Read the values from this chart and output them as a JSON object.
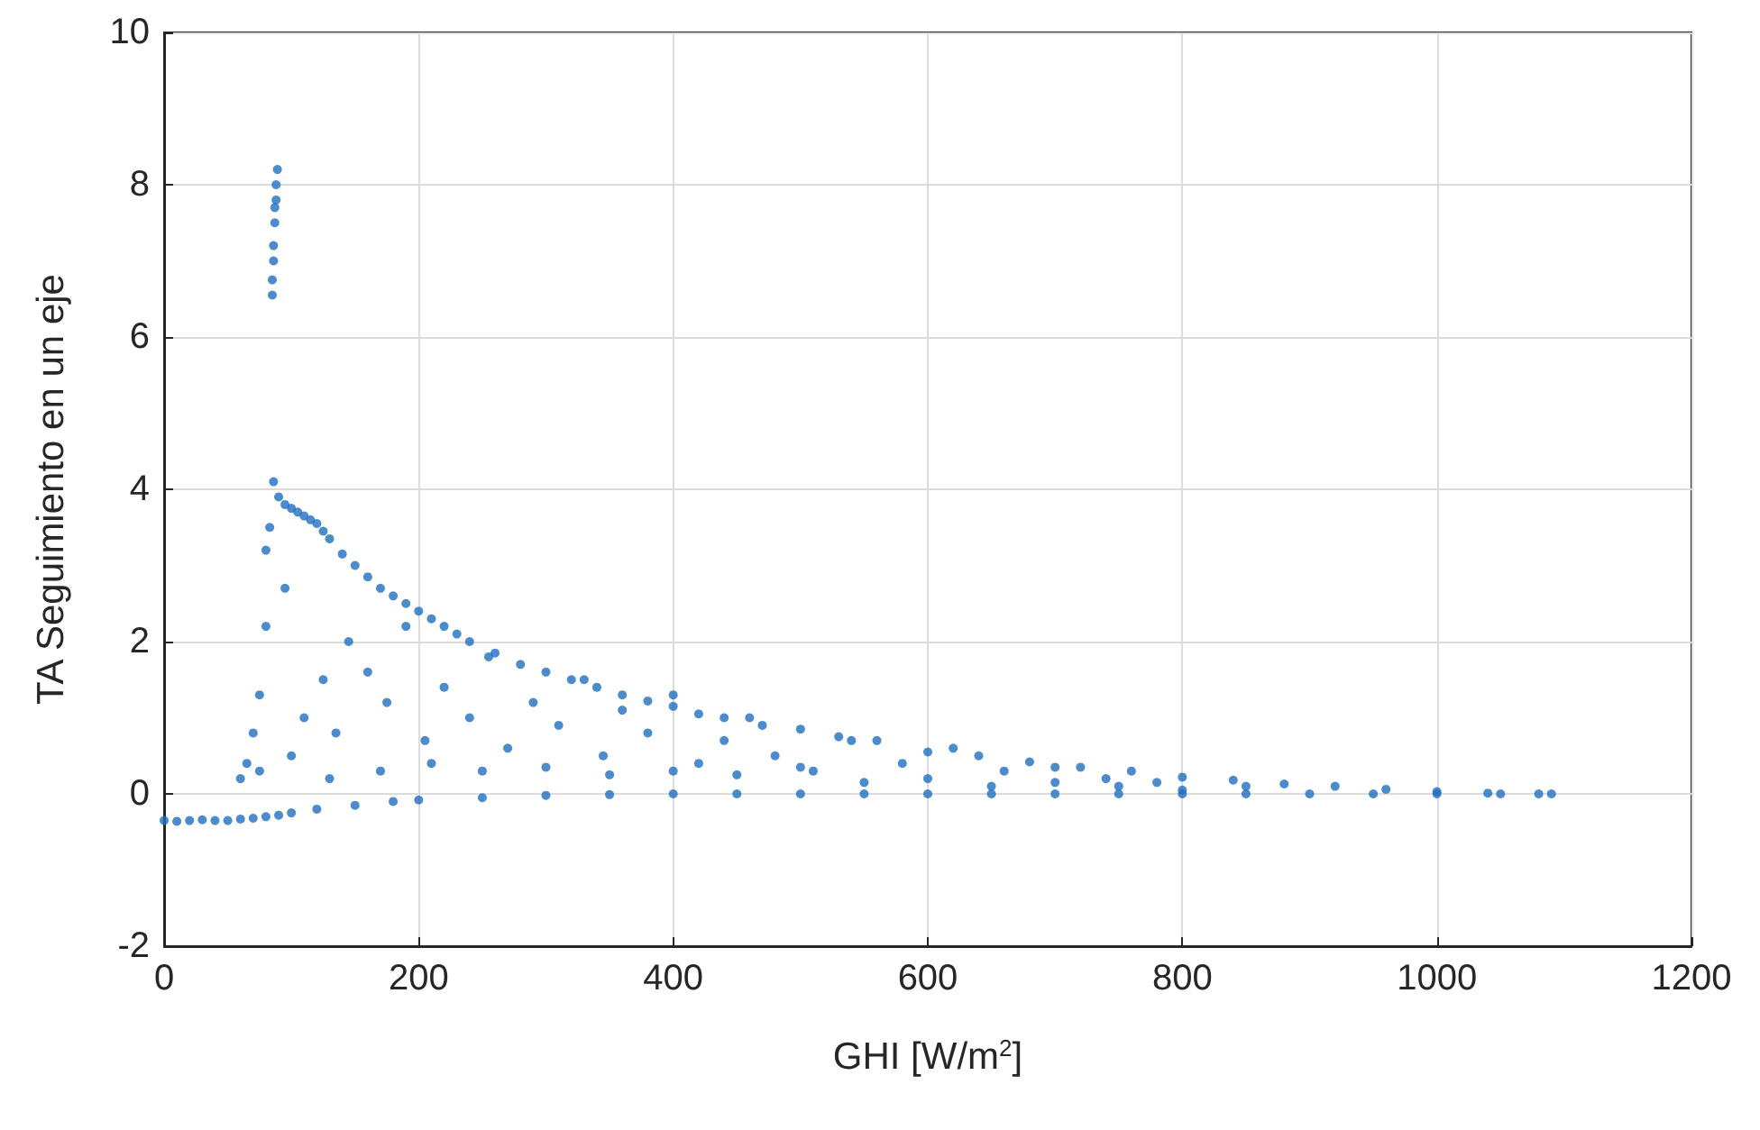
{
  "chart_data": {
    "type": "scatter",
    "xlabel": "GHI [W/m$^{2}$]",
    "ylabel": "TA Seguimiento en un eje",
    "xlim": [
      0,
      1200
    ],
    "xticks": [
      0,
      200,
      400,
      600,
      800,
      1000,
      1200
    ],
    "ylim": [
      -2,
      10
    ],
    "yticks": [
      -2,
      0,
      2,
      4,
      6,
      8,
      10
    ],
    "grid": true,
    "marker": "circle",
    "series": [
      {
        "color": "#1f6fbf",
        "x": [
          0,
          10,
          20,
          30,
          40,
          50,
          60,
          70,
          80,
          90,
          100,
          120,
          150,
          180,
          200,
          250,
          300,
          350,
          400,
          450,
          500,
          550,
          600,
          650,
          700,
          750,
          800,
          850,
          900,
          950,
          1000,
          1050,
          1090,
          85,
          85,
          86,
          86,
          87,
          87,
          88,
          88,
          89,
          80,
          83,
          86,
          90,
          95,
          100,
          105,
          110,
          115,
          120,
          125,
          130,
          140,
          150,
          160,
          170,
          180,
          190,
          200,
          210,
          220,
          230,
          240,
          260,
          280,
          300,
          320,
          340,
          360,
          380,
          400,
          420,
          440,
          470,
          500,
          530,
          560,
          600,
          640,
          680,
          720,
          760,
          800,
          840,
          880,
          920,
          960,
          1000,
          1040,
          1080,
          70,
          75,
          80,
          95,
          110,
          125,
          135,
          145,
          160,
          175,
          190,
          205,
          220,
          240,
          255,
          270,
          290,
          310,
          330,
          345,
          360,
          380,
          400,
          420,
          440,
          460,
          480,
          510,
          540,
          580,
          620,
          660,
          700,
          740,
          780,
          850,
          60,
          65,
          75,
          100,
          130,
          170,
          210,
          250,
          300,
          350,
          400,
          450,
          500,
          550,
          600,
          650,
          700,
          750,
          800
        ],
        "values": [
          -0.35,
          -0.36,
          -0.35,
          -0.34,
          -0.35,
          -0.35,
          -0.33,
          -0.32,
          -0.3,
          -0.28,
          -0.25,
          -0.2,
          -0.15,
          -0.1,
          -0.08,
          -0.05,
          -0.02,
          -0.01,
          0,
          0,
          0,
          0,
          0,
          0,
          0,
          0,
          0,
          0,
          0,
          0,
          0,
          0,
          0,
          6.55,
          6.75,
          7.0,
          7.2,
          7.5,
          7.7,
          7.8,
          8.0,
          8.2,
          3.2,
          3.5,
          4.1,
          3.9,
          3.8,
          3.75,
          3.7,
          3.65,
          3.6,
          3.55,
          3.45,
          3.35,
          3.15,
          3.0,
          2.85,
          2.7,
          2.6,
          2.5,
          2.4,
          2.3,
          2.2,
          2.1,
          2.0,
          1.85,
          1.7,
          1.6,
          1.5,
          1.4,
          1.3,
          1.22,
          1.15,
          1.05,
          1.0,
          0.9,
          0.85,
          0.75,
          0.7,
          0.55,
          0.5,
          0.42,
          0.35,
          0.3,
          0.22,
          0.18,
          0.13,
          0.1,
          0.06,
          0.03,
          0.01,
          0,
          0.8,
          1.3,
          2.2,
          2.7,
          1.0,
          1.5,
          0.8,
          2.0,
          1.6,
          1.2,
          2.2,
          0.7,
          1.4,
          1.0,
          1.8,
          0.6,
          1.2,
          0.9,
          1.5,
          0.5,
          1.1,
          0.8,
          1.3,
          0.4,
          0.7,
          1.0,
          0.5,
          0.3,
          0.7,
          0.4,
          0.6,
          0.3,
          0.35,
          0.2,
          0.15,
          0.1,
          0.2,
          0.4,
          0.3,
          0.5,
          0.2,
          0.3,
          0.4,
          0.3,
          0.35,
          0.25,
          0.3,
          0.25,
          0.35,
          0.15,
          0.2,
          0.1,
          0.15,
          0.1,
          0.05
        ]
      }
    ]
  }
}
